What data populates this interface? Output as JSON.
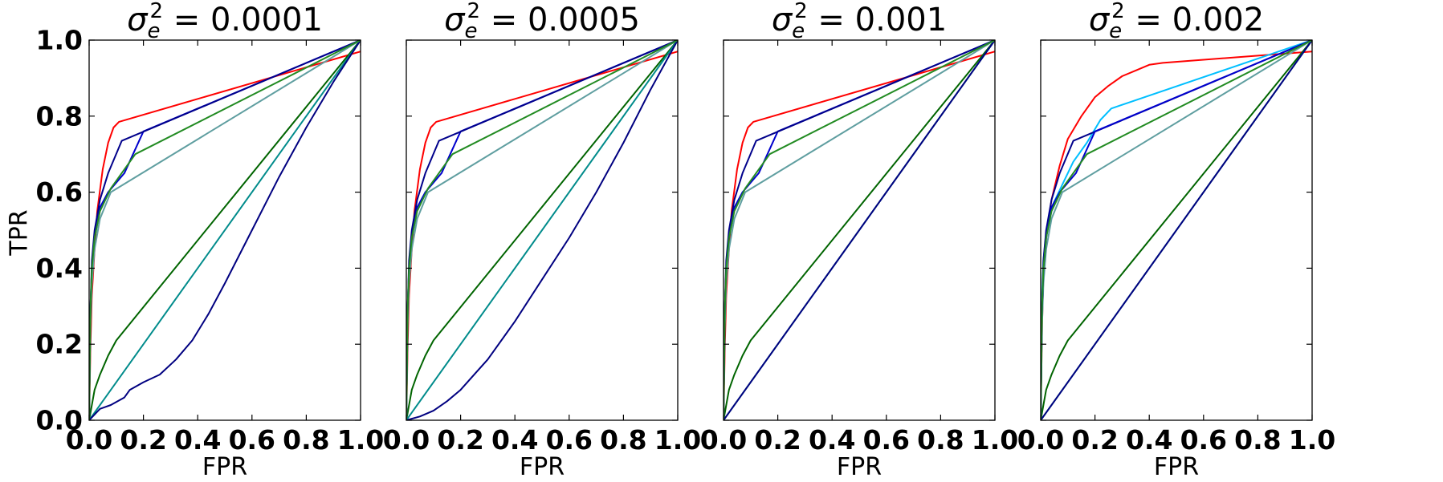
{
  "figure": {
    "ylabel": "TPR"
  },
  "chart_data": [
    {
      "type": "line",
      "title_symbol": "σ",
      "title_sub": "e",
      "title_sup": "2",
      "title_value": " = 0.0001",
      "xlabel": "FPR",
      "ylabel": "TPR",
      "xlim": [
        0,
        1
      ],
      "ylim": [
        0,
        1
      ],
      "xticks": [
        "0.0",
        "0.2",
        "0.4",
        "0.6",
        "0.8",
        "1.0"
      ],
      "yticks": [
        "0.0",
        "0.2",
        "0.4",
        "0.6",
        "0.8",
        "1.0"
      ],
      "grid": false,
      "series": [
        {
          "color": "#ff0000",
          "x": [
            0,
            0.005,
            0.01,
            0.02,
            0.03,
            0.05,
            0.07,
            0.09,
            0.11,
            1
          ],
          "y": [
            0,
            0.2,
            0.33,
            0.45,
            0.55,
            0.66,
            0.73,
            0.77,
            0.785,
            0.97
          ]
        },
        {
          "color": "#006400",
          "x": [
            0,
            0.02,
            0.04,
            0.07,
            0.1,
            1
          ],
          "y": [
            0,
            0.08,
            0.12,
            0.17,
            0.21,
            1
          ]
        },
        {
          "color": "#008b8b",
          "x": [
            0,
            1
          ],
          "y": [
            0,
            1
          ]
        },
        {
          "color": "#000080",
          "x": [
            0,
            0.04,
            0.08,
            0.13,
            0.15,
            0.2,
            0.26,
            0.32,
            0.38,
            0.44,
            0.5,
            0.6,
            0.7,
            0.8,
            0.9,
            1
          ],
          "y": [
            0,
            0.03,
            0.04,
            0.06,
            0.08,
            0.1,
            0.12,
            0.16,
            0.21,
            0.28,
            0.36,
            0.5,
            0.64,
            0.77,
            0.89,
            1
          ]
        },
        {
          "color": "#0000cd",
          "x": [
            0,
            0.005,
            0.01,
            0.02,
            0.04,
            0.07,
            0.13,
            0.2,
            1
          ],
          "y": [
            0,
            0.3,
            0.4,
            0.48,
            0.56,
            0.6,
            0.65,
            0.76,
            1
          ]
        },
        {
          "color": "#5f9ea0",
          "x": [
            0,
            0.005,
            0.01,
            0.02,
            0.04,
            0.08,
            1
          ],
          "y": [
            0,
            0.25,
            0.36,
            0.45,
            0.53,
            0.6,
            1
          ]
        },
        {
          "color": "#00008b",
          "x": [
            0,
            0.005,
            0.01,
            0.02,
            0.04,
            0.07,
            0.12,
            1
          ],
          "y": [
            0,
            0.3,
            0.42,
            0.5,
            0.58,
            0.65,
            0.735,
            1
          ]
        },
        {
          "color": "#228b22",
          "x": [
            0,
            0.005,
            0.01,
            0.02,
            0.04,
            0.08,
            0.17,
            1
          ],
          "y": [
            0,
            0.3,
            0.4,
            0.48,
            0.55,
            0.61,
            0.7,
            1
          ]
        }
      ]
    },
    {
      "type": "line",
      "title_symbol": "σ",
      "title_sub": "e",
      "title_sup": "2",
      "title_value": " = 0.0005",
      "xlabel": "FPR",
      "ylabel": "",
      "xlim": [
        0,
        1
      ],
      "ylim": [
        0,
        1
      ],
      "xticks": [
        "0.0",
        "0.2",
        "0.4",
        "0.6",
        "0.8",
        "1.0"
      ],
      "yticks": [],
      "grid": false,
      "series": [
        {
          "color": "#ff0000",
          "x": [
            0,
            0.005,
            0.01,
            0.02,
            0.03,
            0.05,
            0.07,
            0.09,
            0.11,
            1
          ],
          "y": [
            0,
            0.2,
            0.33,
            0.45,
            0.55,
            0.66,
            0.73,
            0.77,
            0.785,
            0.97
          ]
        },
        {
          "color": "#006400",
          "x": [
            0,
            0.02,
            0.04,
            0.07,
            0.1,
            1
          ],
          "y": [
            0,
            0.08,
            0.12,
            0.17,
            0.21,
            1
          ]
        },
        {
          "color": "#008b8b",
          "x": [
            0,
            1
          ],
          "y": [
            0,
            1
          ]
        },
        {
          "color": "#000080",
          "x": [
            0,
            0.05,
            0.1,
            0.15,
            0.2,
            0.25,
            0.3,
            0.4,
            0.5,
            0.6,
            0.7,
            0.8,
            0.9,
            1
          ],
          "y": [
            0,
            0.01,
            0.025,
            0.05,
            0.08,
            0.12,
            0.16,
            0.26,
            0.37,
            0.48,
            0.6,
            0.73,
            0.87,
            1
          ]
        },
        {
          "color": "#0000cd",
          "x": [
            0,
            0.005,
            0.01,
            0.02,
            0.04,
            0.07,
            0.13,
            0.2,
            1
          ],
          "y": [
            0,
            0.3,
            0.4,
            0.48,
            0.56,
            0.6,
            0.65,
            0.76,
            1
          ]
        },
        {
          "color": "#5f9ea0",
          "x": [
            0,
            0.005,
            0.01,
            0.02,
            0.04,
            0.08,
            1
          ],
          "y": [
            0,
            0.25,
            0.36,
            0.45,
            0.53,
            0.6,
            1
          ]
        },
        {
          "color": "#00008b",
          "x": [
            0,
            0.005,
            0.01,
            0.02,
            0.04,
            0.07,
            0.12,
            1
          ],
          "y": [
            0,
            0.3,
            0.42,
            0.5,
            0.58,
            0.65,
            0.735,
            1
          ]
        },
        {
          "color": "#228b22",
          "x": [
            0,
            0.005,
            0.01,
            0.02,
            0.04,
            0.08,
            0.17,
            1
          ],
          "y": [
            0,
            0.3,
            0.4,
            0.48,
            0.55,
            0.61,
            0.7,
            1
          ]
        }
      ]
    },
    {
      "type": "line",
      "title_symbol": "σ",
      "title_sub": "e",
      "title_sup": "2",
      "title_value": " = 0.001",
      "xlabel": "FPR",
      "ylabel": "",
      "xlim": [
        0,
        1
      ],
      "ylim": [
        0,
        1
      ],
      "xticks": [
        "0.0",
        "0.2",
        "0.4",
        "0.6",
        "0.8",
        "1.0"
      ],
      "yticks": [],
      "grid": false,
      "series": [
        {
          "color": "#ff0000",
          "x": [
            0,
            0.005,
            0.01,
            0.02,
            0.03,
            0.05,
            0.07,
            0.09,
            0.11,
            1
          ],
          "y": [
            0,
            0.2,
            0.33,
            0.45,
            0.55,
            0.66,
            0.73,
            0.77,
            0.785,
            0.97
          ]
        },
        {
          "color": "#006400",
          "x": [
            0,
            0.02,
            0.04,
            0.07,
            0.1,
            1
          ],
          "y": [
            0,
            0.08,
            0.12,
            0.17,
            0.21,
            1
          ]
        },
        {
          "color": "#008b8b",
          "x": [
            0,
            1
          ],
          "y": [
            0,
            1
          ]
        },
        {
          "color": "#000080",
          "x": [
            0,
            1
          ],
          "y": [
            0,
            1
          ]
        },
        {
          "color": "#0000cd",
          "x": [
            0,
            0.005,
            0.01,
            0.02,
            0.04,
            0.07,
            0.13,
            0.2,
            1
          ],
          "y": [
            0,
            0.3,
            0.4,
            0.48,
            0.56,
            0.6,
            0.65,
            0.76,
            1
          ]
        },
        {
          "color": "#5f9ea0",
          "x": [
            0,
            0.005,
            0.01,
            0.02,
            0.04,
            0.08,
            1
          ],
          "y": [
            0,
            0.25,
            0.36,
            0.45,
            0.53,
            0.6,
            1
          ]
        },
        {
          "color": "#00008b",
          "x": [
            0,
            0.005,
            0.01,
            0.02,
            0.04,
            0.07,
            0.12,
            1
          ],
          "y": [
            0,
            0.3,
            0.42,
            0.5,
            0.58,
            0.65,
            0.735,
            1
          ]
        },
        {
          "color": "#228b22",
          "x": [
            0,
            0.005,
            0.01,
            0.02,
            0.04,
            0.08,
            0.17,
            1
          ],
          "y": [
            0,
            0.3,
            0.4,
            0.48,
            0.55,
            0.61,
            0.7,
            1
          ]
        }
      ]
    },
    {
      "type": "line",
      "title_symbol": "σ",
      "title_sub": "e",
      "title_sup": "2",
      "title_value": " = 0.002",
      "xlabel": "FPR",
      "ylabel": "",
      "xlim": [
        0,
        1
      ],
      "ylim": [
        0,
        1
      ],
      "xticks": [
        "0.0",
        "0.2",
        "0.4",
        "0.6",
        "0.8",
        "1.0"
      ],
      "yticks": [],
      "grid": false,
      "series": [
        {
          "color": "#ff0000",
          "x": [
            0,
            0.005,
            0.01,
            0.02,
            0.04,
            0.07,
            0.1,
            0.15,
            0.2,
            0.25,
            0.3,
            0.35,
            0.4,
            0.45,
            1
          ],
          "y": [
            0,
            0.25,
            0.38,
            0.48,
            0.58,
            0.67,
            0.74,
            0.8,
            0.85,
            0.88,
            0.905,
            0.92,
            0.935,
            0.94,
            0.97
          ]
        },
        {
          "color": "#006400",
          "x": [
            0,
            0.02,
            0.04,
            0.07,
            0.1,
            1
          ],
          "y": [
            0,
            0.08,
            0.12,
            0.17,
            0.21,
            1
          ]
        },
        {
          "color": "#008b8b",
          "x": [
            0,
            1
          ],
          "y": [
            0,
            1
          ]
        },
        {
          "color": "#000080",
          "x": [
            0,
            1
          ],
          "y": [
            0,
            1
          ]
        },
        {
          "color": "#00bfff",
          "x": [
            0,
            0.005,
            0.01,
            0.02,
            0.04,
            0.08,
            0.12,
            0.17,
            0.22,
            0.26,
            1
          ],
          "y": [
            0,
            0.33,
            0.42,
            0.49,
            0.56,
            0.62,
            0.68,
            0.73,
            0.79,
            0.82,
            1
          ]
        },
        {
          "color": "#5f9ea0",
          "x": [
            0,
            0.005,
            0.01,
            0.02,
            0.04,
            0.08,
            1
          ],
          "y": [
            0,
            0.25,
            0.36,
            0.45,
            0.53,
            0.6,
            1
          ]
        },
        {
          "color": "#00008b",
          "x": [
            0,
            0.005,
            0.01,
            0.02,
            0.04,
            0.07,
            0.12,
            1
          ],
          "y": [
            0,
            0.3,
            0.42,
            0.5,
            0.58,
            0.65,
            0.735,
            1
          ]
        },
        {
          "color": "#0000cd",
          "x": [
            0,
            0.005,
            0.01,
            0.02,
            0.04,
            0.07,
            0.13,
            0.2,
            1
          ],
          "y": [
            0,
            0.3,
            0.4,
            0.48,
            0.56,
            0.6,
            0.65,
            0.76,
            1
          ]
        },
        {
          "color": "#228b22",
          "x": [
            0,
            0.005,
            0.01,
            0.02,
            0.04,
            0.08,
            0.17,
            1
          ],
          "y": [
            0,
            0.3,
            0.4,
            0.48,
            0.55,
            0.61,
            0.7,
            1
          ]
        }
      ]
    }
  ]
}
